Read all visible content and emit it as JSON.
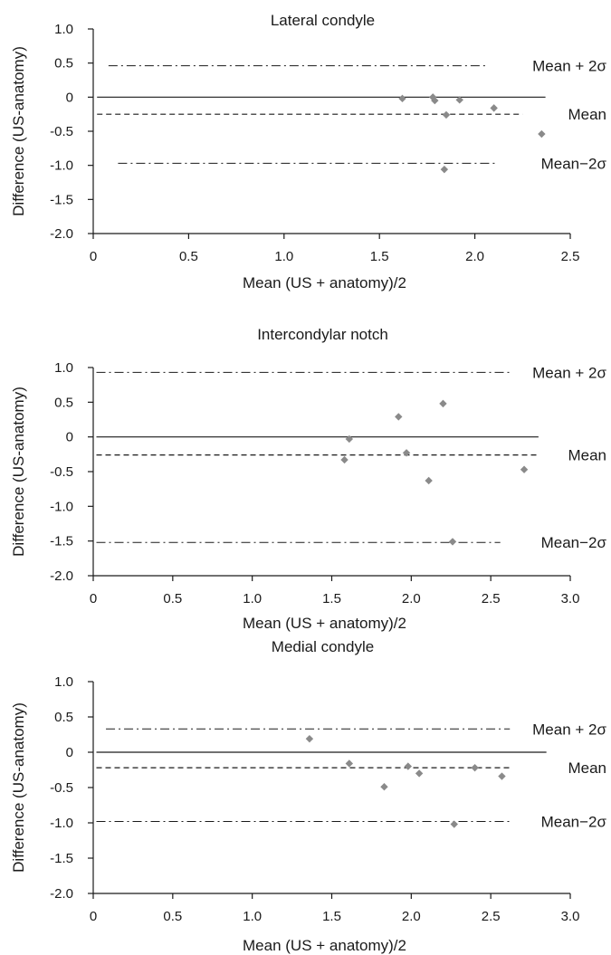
{
  "chart_data": [
    {
      "type": "scatter",
      "title": "Lateral condyle",
      "xlabel": "Mean (US + anatomy)/2",
      "ylabel": "Difference (US-anatomy)",
      "xlim": [
        0,
        2.5
      ],
      "ylim": [
        -2.0,
        1.0
      ],
      "x_ticks": [
        "0",
        "0.5",
        "1.0",
        "1.5",
        "2.0",
        "2.5"
      ],
      "y_ticks": [
        "1.0",
        "0.5",
        "0",
        "-0.5",
        "-1.0",
        "-1.5",
        "-2.0"
      ],
      "marker_color": "#8a8a8a",
      "points": [
        {
          "x": 1.62,
          "y": -0.02
        },
        {
          "x": 1.78,
          "y": 0.0
        },
        {
          "x": 1.79,
          "y": -0.05
        },
        {
          "x": 1.92,
          "y": -0.04
        },
        {
          "x": 1.85,
          "y": -0.26
        },
        {
          "x": 2.1,
          "y": -0.16
        },
        {
          "x": 2.35,
          "y": -0.54
        },
        {
          "x": 1.84,
          "y": -1.06
        }
      ],
      "lines": {
        "zero": {
          "y": 0,
          "x_range": [
            0.02,
            2.37
          ]
        },
        "mean": {
          "y": -0.25,
          "x_range": [
            0.02,
            2.25
          ],
          "label": "Mean"
        },
        "upper": {
          "y": 0.46,
          "x_range": [
            0.08,
            2.07
          ],
          "label": "Mean + 2σ"
        },
        "lower": {
          "y": -0.97,
          "x_range": [
            0.13,
            2.12
          ],
          "label": "Mean−2σ"
        }
      }
    },
    {
      "type": "scatter",
      "title": "Intercondylar notch",
      "xlabel": "Mean (US + anatomy)/2",
      "ylabel": "Difference (US-anatomy)",
      "xlim": [
        0,
        3.0
      ],
      "ylim": [
        -2.0,
        1.0
      ],
      "x_ticks": [
        "0",
        "0.5",
        "1.0",
        "1.5",
        "2.0",
        "2.5",
        "3.0"
      ],
      "y_ticks": [
        "1.0",
        "0.5",
        "0",
        "-0.5",
        "-1.0",
        "-1.5",
        "-2.0"
      ],
      "marker_color": "#8a8a8a",
      "points": [
        {
          "x": 1.61,
          "y": -0.03
        },
        {
          "x": 1.58,
          "y": -0.33
        },
        {
          "x": 1.92,
          "y": 0.29
        },
        {
          "x": 1.97,
          "y": -0.23
        },
        {
          "x": 2.2,
          "y": 0.48
        },
        {
          "x": 2.11,
          "y": -0.63
        },
        {
          "x": 2.71,
          "y": -0.47
        },
        {
          "x": 2.26,
          "y": -1.51
        }
      ],
      "lines": {
        "zero": {
          "y": 0,
          "x_range": [
            0.02,
            2.8
          ]
        },
        "mean": {
          "y": -0.26,
          "x_range": [
            0.02,
            2.8
          ],
          "label": "Mean"
        },
        "upper": {
          "y": 0.93,
          "x_range": [
            0.02,
            2.62
          ],
          "label": "Mean + 2σ"
        },
        "lower": {
          "y": -1.52,
          "x_range": [
            0.02,
            2.56
          ],
          "label": "Mean−2σ"
        }
      }
    },
    {
      "type": "scatter",
      "title": "Medial condyle",
      "xlabel": "Mean (US + anatomy)/2",
      "ylabel": "Difference (US-anatomy)",
      "xlim": [
        0,
        3.0
      ],
      "ylim": [
        -2.0,
        1.0
      ],
      "x_ticks": [
        "0",
        "0.5",
        "1.0",
        "1.5",
        "2.0",
        "2.5",
        "3.0"
      ],
      "y_ticks": [
        "1.0",
        "0.5",
        "0",
        "-0.5",
        "-1.0",
        "-1.5",
        "-2.0"
      ],
      "marker_color": "#8a8a8a",
      "points": [
        {
          "x": 1.36,
          "y": 0.19
        },
        {
          "x": 1.61,
          "y": -0.16
        },
        {
          "x": 1.83,
          "y": -0.49
        },
        {
          "x": 1.98,
          "y": -0.2
        },
        {
          "x": 2.05,
          "y": -0.3
        },
        {
          "x": 2.4,
          "y": -0.22
        },
        {
          "x": 2.57,
          "y": -0.34
        },
        {
          "x": 2.27,
          "y": -1.02
        }
      ],
      "lines": {
        "zero": {
          "y": 0,
          "x_range": [
            0.02,
            2.85
          ]
        },
        "mean": {
          "y": -0.22,
          "x_range": [
            0.02,
            2.62
          ],
          "label": "Mean"
        },
        "upper": {
          "y": 0.33,
          "x_range": [
            0.08,
            2.62
          ],
          "label": "Mean + 2σ"
        },
        "lower": {
          "y": -0.98,
          "x_range": [
            0.02,
            2.62
          ],
          "label": "Mean−2σ"
        }
      }
    }
  ]
}
